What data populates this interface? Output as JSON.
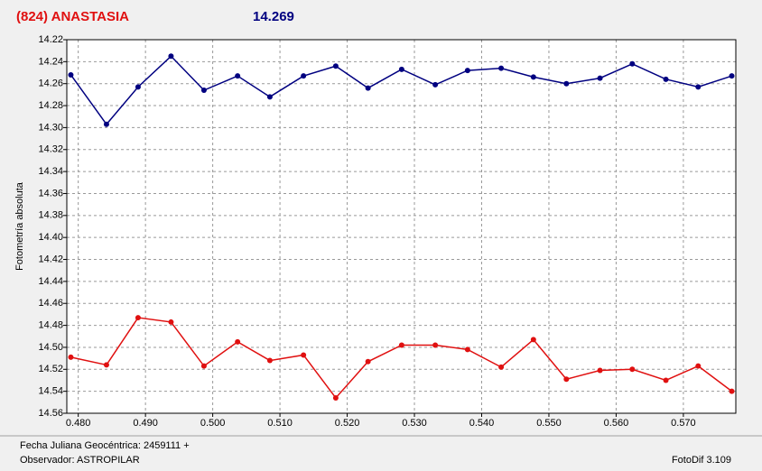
{
  "chart_data": {
    "type": "line",
    "title": "(824) ANASTASIA",
    "annotation": 14.269,
    "ylabel": "Fotometría absoluta",
    "footer_lines": [
      "Fecha Juliana Geocéntrica: 2459111 +",
      "Observador: ASTROPILAR"
    ],
    "software": "FotoDif 3.109",
    "x": [
      0.4789,
      0.4842,
      0.4889,
      0.4938,
      0.4987,
      0.5037,
      0.5085,
      0.5135,
      0.5183,
      0.5231,
      0.5281,
      0.5331,
      0.5379,
      0.5429,
      0.5477,
      0.5526,
      0.5576,
      0.5624,
      0.5674,
      0.5722,
      0.5772
    ],
    "series": [
      {
        "color": "#000080",
        "values": [
          14.252,
          14.297,
          14.263,
          14.235,
          14.266,
          14.253,
          14.272,
          14.253,
          14.244,
          14.264,
          14.247,
          14.261,
          14.248,
          14.246,
          14.254,
          14.26,
          14.255,
          14.242,
          14.256,
          14.263,
          14.253
        ]
      },
      {
        "color": "#e01010",
        "values": [
          14.509,
          14.516,
          14.473,
          14.477,
          14.517,
          14.495,
          14.512,
          14.507,
          14.546,
          14.513,
          14.498,
          14.498,
          14.502,
          14.518,
          14.493,
          14.529,
          14.521,
          14.52,
          14.53,
          14.517,
          14.54
        ]
      }
    ],
    "xlim": [
      0.4783,
      0.5778
    ],
    "xticks": [
      {
        "value": 0.48,
        "label": "0.480"
      },
      {
        "value": 0.49,
        "label": "0.490"
      },
      {
        "value": 0.5,
        "label": "0.500"
      },
      {
        "value": 0.51,
        "label": "0.510"
      },
      {
        "value": 0.52,
        "label": "0.520"
      },
      {
        "value": 0.53,
        "label": "0.530"
      },
      {
        "value": 0.54,
        "label": "0.540"
      },
      {
        "value": 0.55,
        "label": "0.550"
      },
      {
        "value": 0.56,
        "label": "0.560"
      },
      {
        "value": 0.57,
        "label": "0.570"
      }
    ],
    "ylim": [
      14.22,
      14.56
    ],
    "y_inverted": true,
    "yticks": [
      14.22,
      14.24,
      14.26,
      14.28,
      {
        "value": 14.3,
        "label": "14.30"
      },
      14.32,
      14.34,
      14.36,
      14.38,
      {
        "value": 14.4,
        "label": "14.40"
      },
      14.42,
      14.44,
      14.46,
      14.48,
      {
        "value": 14.5,
        "label": "14.50"
      },
      14.52,
      14.54,
      14.56
    ],
    "grid": true
  }
}
